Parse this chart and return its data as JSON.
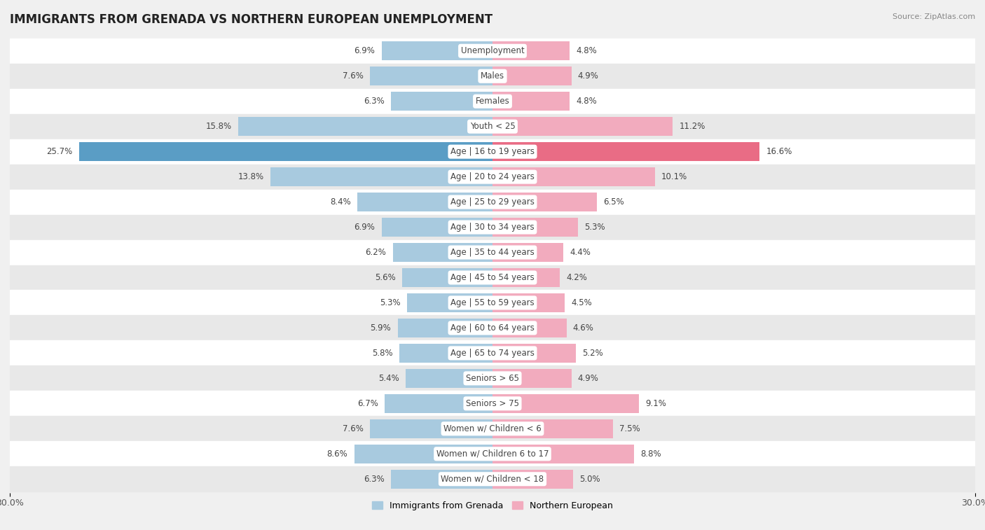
{
  "title": "IMMIGRANTS FROM GRENADA VS NORTHERN EUROPEAN UNEMPLOYMENT",
  "source": "Source: ZipAtlas.com",
  "categories": [
    "Unemployment",
    "Males",
    "Females",
    "Youth < 25",
    "Age | 16 to 19 years",
    "Age | 20 to 24 years",
    "Age | 25 to 29 years",
    "Age | 30 to 34 years",
    "Age | 35 to 44 years",
    "Age | 45 to 54 years",
    "Age | 55 to 59 years",
    "Age | 60 to 64 years",
    "Age | 65 to 74 years",
    "Seniors > 65",
    "Seniors > 75",
    "Women w/ Children < 6",
    "Women w/ Children 6 to 17",
    "Women w/ Children < 18"
  ],
  "left_values": [
    6.9,
    7.6,
    6.3,
    15.8,
    25.7,
    13.8,
    8.4,
    6.9,
    6.2,
    5.6,
    5.3,
    5.9,
    5.8,
    5.4,
    6.7,
    7.6,
    8.6,
    6.3
  ],
  "right_values": [
    4.8,
    4.9,
    4.8,
    11.2,
    16.6,
    10.1,
    6.5,
    5.3,
    4.4,
    4.2,
    4.5,
    4.6,
    5.2,
    4.9,
    9.1,
    7.5,
    8.8,
    5.0
  ],
  "left_color": "#A8CADF",
  "right_color": "#F2ABBE",
  "left_highlight_color": "#5A9DC5",
  "right_highlight_color": "#E96C85",
  "highlight_index": 4,
  "left_label": "Immigrants from Grenada",
  "right_label": "Northern European",
  "xlim": 30.0,
  "bg_color": "#f0f0f0",
  "row_color_even": "#ffffff",
  "row_color_odd": "#e8e8e8",
  "title_fontsize": 12,
  "value_fontsize": 8.5,
  "category_fontsize": 8.5,
  "legend_fontsize": 9
}
